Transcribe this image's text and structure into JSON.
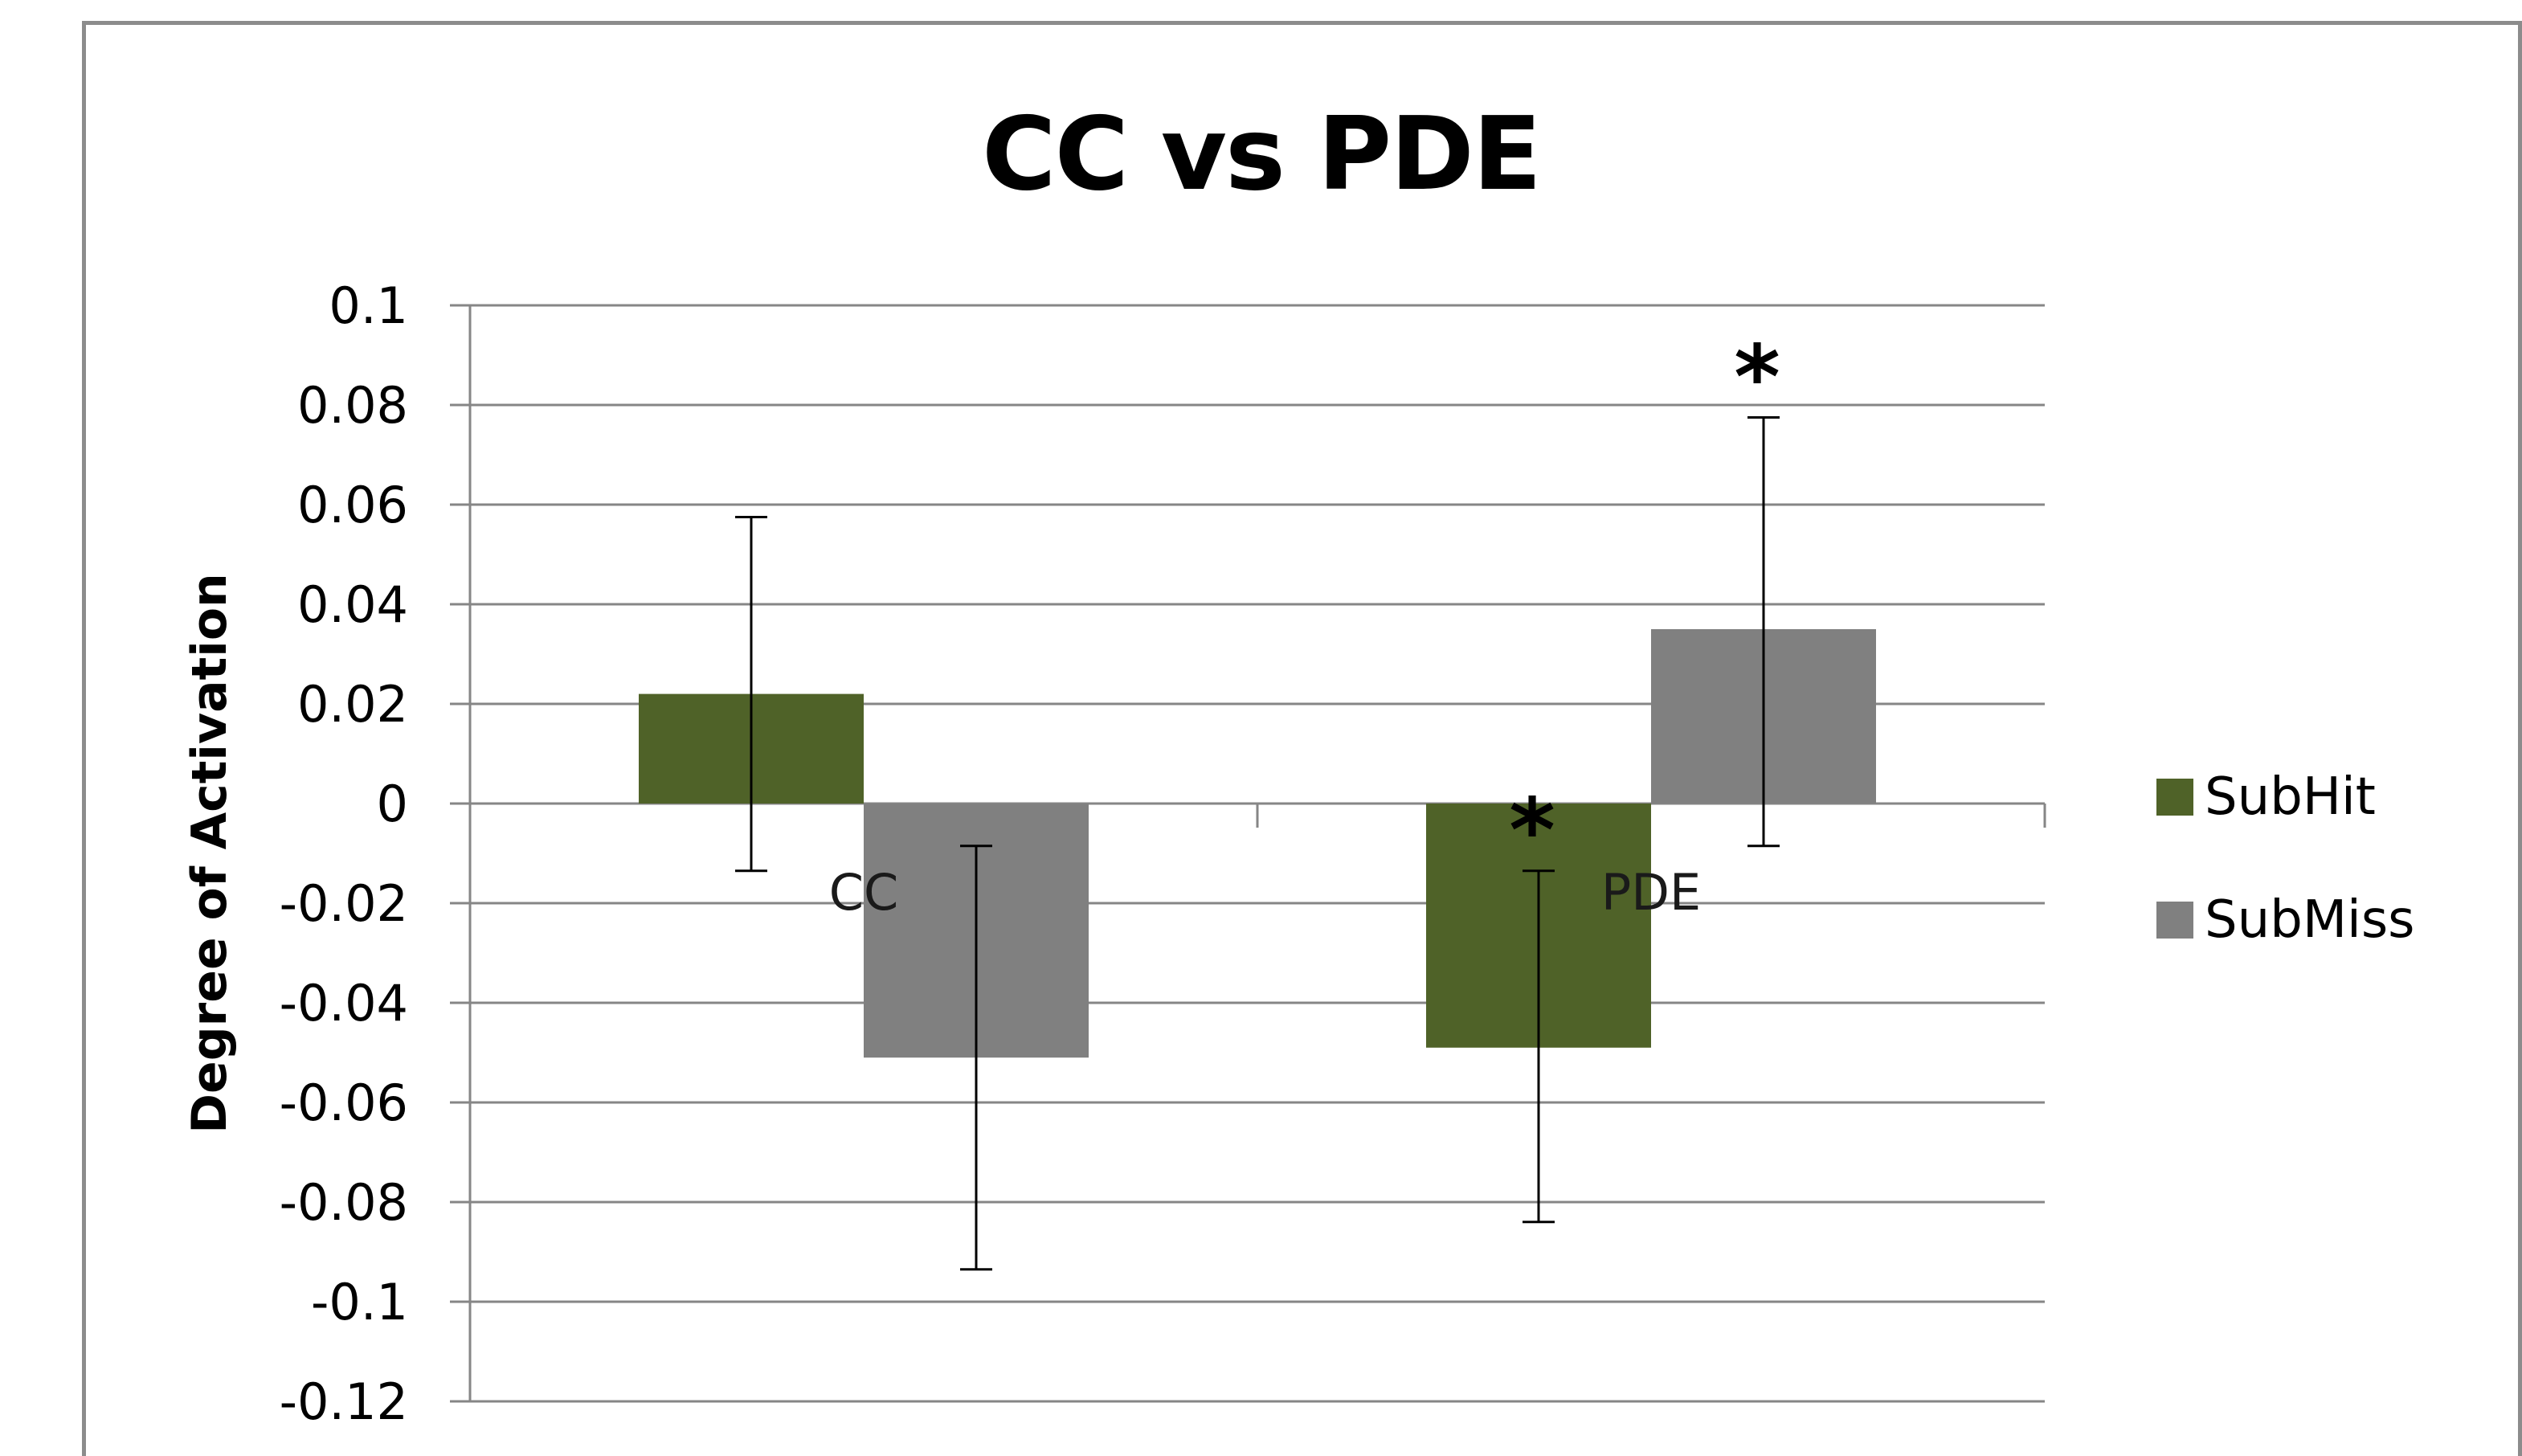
{
  "colors": {
    "SubHit": "#4f6228",
    "SubMiss": "#808080",
    "grid": "#868686",
    "frame": "#8c8c8c"
  },
  "legend": {
    "items": [
      {
        "label": "SubHit",
        "color": "#4f6228"
      },
      {
        "label": "SubMiss",
        "color": "#808080"
      }
    ],
    "position": "right"
  },
  "chart_data": {
    "type": "bar",
    "title": "CC vs PDE",
    "xlabel": "",
    "ylabel": "Degree of Activation",
    "ylim": [
      -0.12,
      0.1
    ],
    "yticks": [
      0.1,
      0.08,
      0.06,
      0.04,
      0.02,
      0,
      -0.02,
      -0.04,
      -0.06,
      -0.08,
      -0.1,
      -0.12
    ],
    "ytick_labels": [
      "0.1",
      "0.08",
      "0.06",
      "0.04",
      "0.02",
      "0",
      "-0.02",
      "-0.04",
      "-0.06",
      "-0.08",
      "-0.1",
      "-0.12"
    ],
    "grid": true,
    "categories": [
      "CC",
      "PDE"
    ],
    "series": [
      {
        "name": "SubHit",
        "values": [
          0.022,
          -0.049
        ],
        "error_low": [
          -0.0135,
          -0.084
        ],
        "error_high": [
          0.0575,
          -0.0135
        ],
        "significant": [
          false,
          true
        ]
      },
      {
        "name": "SubMiss",
        "values": [
          -0.051,
          0.035
        ],
        "error_low": [
          -0.0935,
          -0.0085
        ],
        "error_high": [
          -0.0085,
          0.0775
        ],
        "significant": [
          false,
          true
        ]
      }
    ],
    "annotations": [
      "*",
      "*"
    ],
    "significance_marker": "*"
  }
}
